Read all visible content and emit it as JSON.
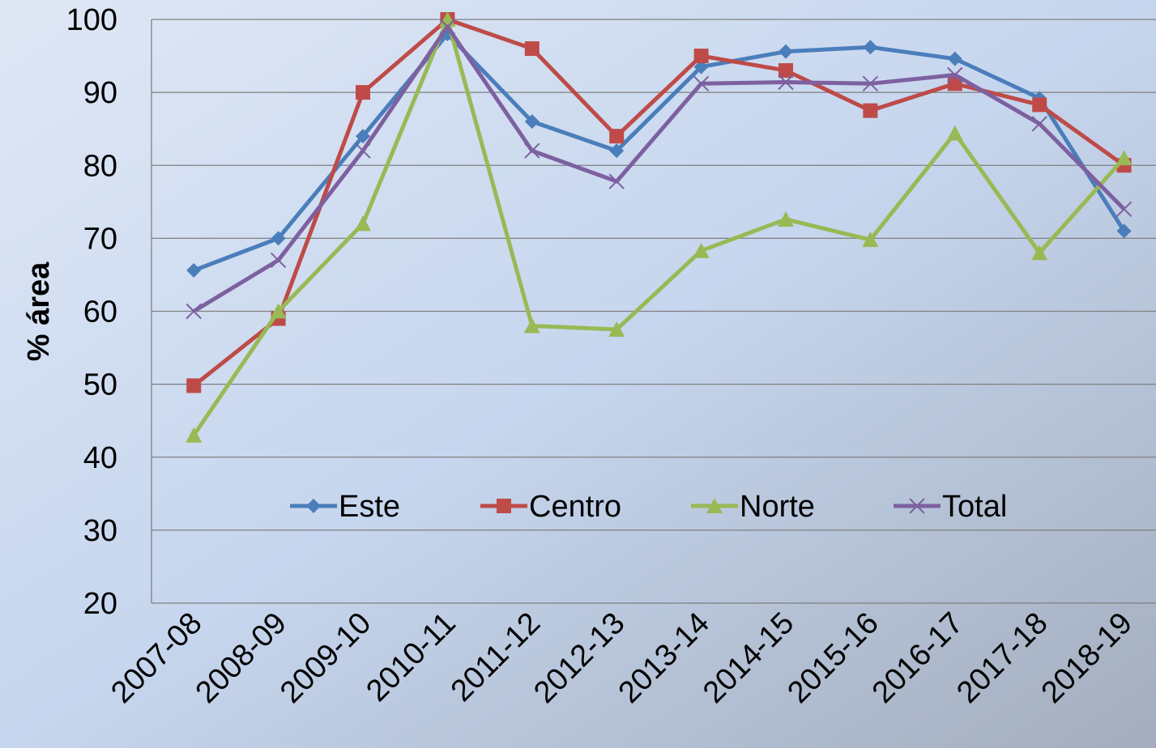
{
  "chart_data": {
    "type": "line",
    "y_label": "% área",
    "categories": [
      "2007-08",
      "2008-09",
      "2009-10",
      "2010-11",
      "2011-12",
      "2012-13",
      "2013-14",
      "2014-15",
      "2015-16",
      "2016-17",
      "2017-18",
      "2018-19"
    ],
    "series": [
      {
        "name": "Este",
        "color": "#4a7ebb",
        "marker": "diamond",
        "values": [
          65.6,
          70,
          84,
          98,
          86,
          82,
          93.5,
          95.6,
          96.2,
          94.6,
          89.2,
          71
        ]
      },
      {
        "name": "Centro",
        "color": "#be4b48",
        "marker": "square",
        "values": [
          49.8,
          59,
          90,
          100,
          96,
          84,
          95,
          93,
          87.5,
          91.2,
          88.3,
          80
        ]
      },
      {
        "name": "Norte",
        "color": "#98b954",
        "marker": "triangle",
        "values": [
          43,
          60,
          72,
          100,
          58,
          57.5,
          68.3,
          72.6,
          69.8,
          84.4,
          68,
          81
        ]
      },
      {
        "name": "Total",
        "color": "#7d60a0",
        "marker": "x",
        "values": [
          60,
          67,
          82,
          99,
          82,
          77.8,
          91.2,
          91.4,
          91.2,
          92.4,
          85.7,
          74
        ]
      }
    ],
    "ylim": [
      20,
      100
    ],
    "yticks": [
      20,
      30,
      40,
      50,
      60,
      70,
      80,
      90,
      100
    ],
    "grid": true,
    "legend": "center"
  }
}
